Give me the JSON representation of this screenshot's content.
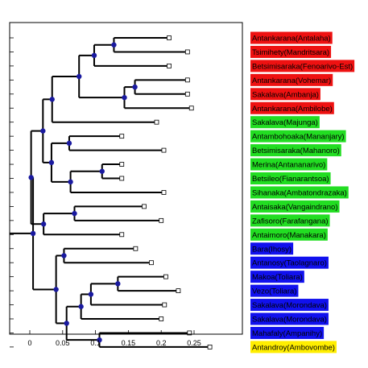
{
  "chart_data": {
    "type": "dendrogram",
    "xlim": [
      -0.02,
      0.28
    ],
    "x_ticks": [
      0,
      0.05,
      0.1,
      0.15,
      0.2,
      0.25
    ],
    "x_tick_labels": [
      "0",
      "0.05",
      "0.1",
      "0.15",
      "0.2",
      "0.25"
    ],
    "colors": {
      "red": "#ee1111",
      "green": "#22dd22",
      "blue": "#1111ee",
      "yellow": "#ffee00",
      "node": "#1a1aa0",
      "line": "#000000"
    },
    "leaves": [
      {
        "label": "Antankarana(Antalaha)",
        "color": "red",
        "x": 0.212
      },
      {
        "label": "Tsimihety(Mandritsara)",
        "color": "red",
        "x": 0.24
      },
      {
        "label": "Betsimisaraka(Fenoarivo-Est)",
        "color": "red",
        "x": 0.212
      },
      {
        "label": "Antankarana(Vohemar)",
        "color": "red",
        "x": 0.24
      },
      {
        "label": "Sakalava(Ambanja)",
        "color": "red",
        "x": 0.24
      },
      {
        "label": "Antankarana(Ambilobe)",
        "color": "red",
        "x": 0.246
      },
      {
        "label": "Sakalava(Majunga)",
        "color": "green",
        "x": 0.193
      },
      {
        "label": "Antambohoaka(Mananjary)",
        "color": "green",
        "x": 0.14
      },
      {
        "label": "Betsimisaraka(Mahanoro)",
        "color": "green",
        "x": 0.204
      },
      {
        "label": "Merina(Antananarivo)",
        "color": "green",
        "x": 0.14
      },
      {
        "label": "Betsileo(Fianarantsoa)",
        "color": "green",
        "x": 0.14
      },
      {
        "label": "Sihanaka(Ambatondrazaka)",
        "color": "green",
        "x": 0.204
      },
      {
        "label": "Antaisaka(Vangaindrano)",
        "color": "green",
        "x": 0.174
      },
      {
        "label": "Zafisoro(Farafangana)",
        "color": "green",
        "x": 0.2
      },
      {
        "label": "Antaimoro(Manakara)",
        "color": "green",
        "x": 0.14
      },
      {
        "label": "Bara(Ihosy)",
        "color": "blue",
        "x": 0.161
      },
      {
        "label": "Antanosy(Taolagnaro)",
        "color": "blue",
        "x": 0.185
      },
      {
        "label": "Makoa(Toliara)",
        "color": "blue",
        "x": 0.207
      },
      {
        "label": "Vezo(Toliara)",
        "color": "blue",
        "x": 0.226
      },
      {
        "label": "Sakalava(Morondava)",
        "color": "blue",
        "x": 0.205
      },
      {
        "label": "Sakalava(Morondava)",
        "color": "blue",
        "x": 0.2
      },
      {
        "label": "Mahafaly(Ampanihy)",
        "color": "blue",
        "x": 0.243
      },
      {
        "label": "Antandroy(Ambovombe)",
        "color": "yellow",
        "x": 0.274
      }
    ],
    "nodes": [
      {
        "id": "n1",
        "x": 0.128,
        "children": [
          "L0",
          "L1"
        ]
      },
      {
        "id": "n2",
        "x": 0.098,
        "children": [
          "n1",
          "L2"
        ]
      },
      {
        "id": "n3",
        "x": 0.16,
        "children": [
          "L3",
          "L4"
        ]
      },
      {
        "id": "n4",
        "x": 0.144,
        "children": [
          "n3",
          "L5"
        ]
      },
      {
        "id": "n5",
        "x": 0.075,
        "children": [
          "n2",
          "n4"
        ]
      },
      {
        "id": "n6",
        "x": 0.034,
        "children": [
          "n5",
          "L6"
        ]
      },
      {
        "id": "n7",
        "x": 0.06,
        "children": [
          "L7",
          "L8"
        ]
      },
      {
        "id": "n8",
        "x": 0.11,
        "children": [
          "L9",
          "L10"
        ]
      },
      {
        "id": "n9",
        "x": 0.062,
        "children": [
          "n8",
          "L11"
        ]
      },
      {
        "id": "n10",
        "x": 0.033,
        "children": [
          "n7",
          "n9"
        ]
      },
      {
        "id": "n11",
        "x": 0.02,
        "children": [
          "n6",
          "n10"
        ]
      },
      {
        "id": "n12",
        "x": 0.068,
        "children": [
          "L12",
          "L13"
        ]
      },
      {
        "id": "n13",
        "x": 0.021,
        "children": [
          "n12",
          "L14"
        ]
      },
      {
        "id": "n14",
        "x": 0.002,
        "children": [
          "n11",
          "n13"
        ]
      },
      {
        "id": "n15",
        "x": 0.052,
        "children": [
          "L15",
          "L16"
        ]
      },
      {
        "id": "n16",
        "x": 0.134,
        "children": [
          "L17",
          "L18"
        ]
      },
      {
        "id": "n17",
        "x": 0.093,
        "children": [
          "n16",
          "L19"
        ]
      },
      {
        "id": "n18",
        "x": 0.078,
        "children": [
          "n17",
          "L20"
        ]
      },
      {
        "id": "n19",
        "x": 0.106,
        "children": [
          "L21",
          "L22"
        ]
      },
      {
        "id": "n20",
        "x": 0.056,
        "children": [
          "n18",
          "n19"
        ]
      },
      {
        "id": "n21",
        "x": 0.04,
        "children": [
          "n15",
          "n20"
        ]
      },
      {
        "id": "n22",
        "x": 0.005,
        "children": [
          "n14",
          "n21"
        ]
      }
    ]
  }
}
